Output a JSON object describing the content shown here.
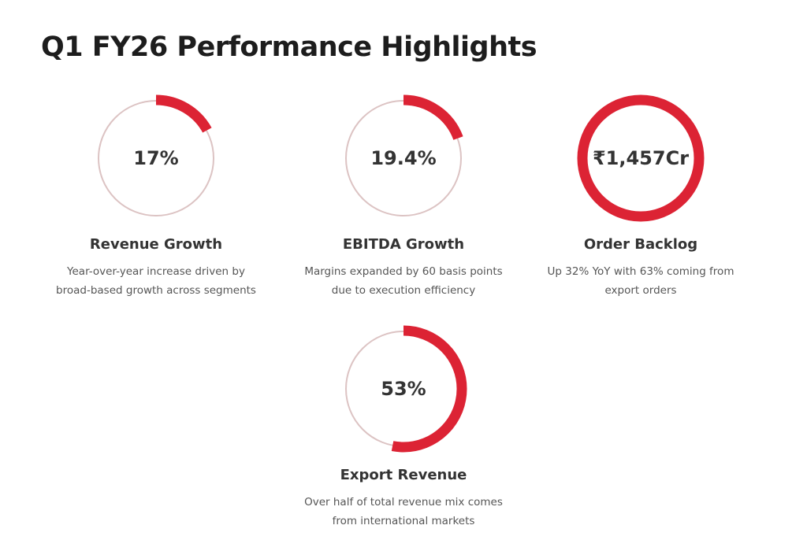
{
  "page_title": "Q1 FY26 Performance Highlights",
  "colors": {
    "accent": "#dc2334",
    "track": "#dcc3c3"
  },
  "metrics": [
    {
      "value": "17%",
      "fill": 0.17,
      "title": "Revenue Growth",
      "desc1": "Year-over-year increase driven by",
      "desc2": "broad-based growth across segments"
    },
    {
      "value": "19.4%",
      "fill": 0.194,
      "title": "EBITDA Growth",
      "desc1": "Margins expanded by 60 basis points",
      "desc2": "due to execution efficiency"
    },
    {
      "value": "₹1,457Cr",
      "fill": 1.0,
      "title": "Order Backlog",
      "desc1": "Up 32% YoY with 63% coming from",
      "desc2": "export orders"
    },
    {
      "value": "53%",
      "fill": 0.53,
      "title": "Export Revenue",
      "desc1": "Over half of total revenue mix comes",
      "desc2": "from international markets"
    }
  ]
}
